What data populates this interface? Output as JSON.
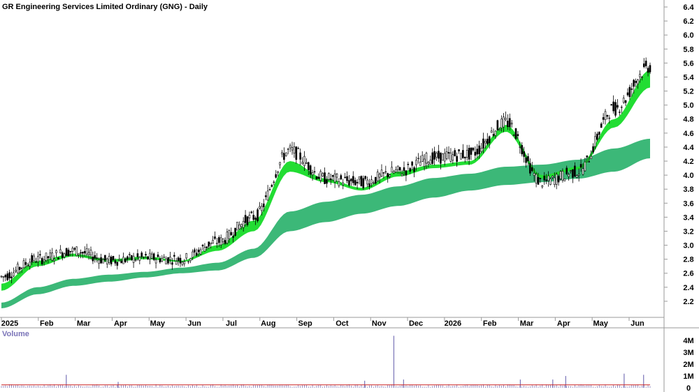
{
  "chart_data": {
    "type": "candlestick",
    "title": "GR Engineering Services Limited Ordinary (GNG) - Daily",
    "y_ticks": [
      "6.4",
      "6.2",
      "6.0",
      "5.8",
      "5.6",
      "5.4",
      "5.2",
      "5.0",
      "4.8",
      "4.6",
      "4.4",
      "4.2",
      "4.0",
      "3.8",
      "3.6",
      "3.4",
      "3.2",
      "3.0",
      "2.8",
      "2.6",
      "2.4",
      "2.2"
    ],
    "ylim": [
      2.0,
      6.45
    ],
    "x_ticks": [
      "2025",
      "Feb",
      "Mar",
      "Apr",
      "May",
      "Jun",
      "Jul",
      "Aug",
      "Sep",
      "Oct",
      "Nov",
      "Dec",
      "2026",
      "Feb",
      "Mar",
      "Apr",
      "May",
      "Jun"
    ],
    "price_series": [
      {
        "month": "2025",
        "close": 2.55
      },
      {
        "month": "Jan",
        "close": 2.8
      },
      {
        "month": "Feb",
        "close": 2.92
      },
      {
        "month": "Mar",
        "close": 2.78
      },
      {
        "month": "Apr",
        "close": 2.82
      },
      {
        "month": "May",
        "close": 2.8
      },
      {
        "month": "Jun",
        "close": 3.05
      },
      {
        "month": "Jul",
        "close": 3.4
      },
      {
        "month": "Aug",
        "close": 4.35
      },
      {
        "month": "Sep",
        "close": 3.95
      },
      {
        "month": "Oct",
        "close": 3.9
      },
      {
        "month": "Nov",
        "close": 4.05
      },
      {
        "month": "Dec",
        "close": 4.25
      },
      {
        "month": "2026",
        "close": 4.3
      },
      {
        "month": "Feb",
        "close": 4.75
      },
      {
        "month": "Mar",
        "close": 3.9
      },
      {
        "month": "Apr",
        "close": 4.05
      },
      {
        "month": "May",
        "close": 4.95
      },
      {
        "month": "Jun",
        "close": 5.55
      }
    ],
    "short_ma_band": {
      "name": "",
      "upper": [
        2.45,
        2.78,
        2.88,
        2.8,
        2.84,
        2.78,
        3.0,
        3.35,
        4.2,
        3.95,
        3.82,
        4.05,
        4.15,
        4.2,
        4.72,
        4.0,
        4.12,
        4.8,
        5.5
      ],
      "lower": [
        2.35,
        2.7,
        2.84,
        2.76,
        2.8,
        2.76,
        2.92,
        3.2,
        4.05,
        3.9,
        3.78,
        3.98,
        4.1,
        4.15,
        4.62,
        3.95,
        4.08,
        4.68,
        5.25
      ]
    },
    "long_ma_band": {
      "name": "",
      "upper": [
        2.18,
        2.4,
        2.52,
        2.58,
        2.62,
        2.68,
        2.75,
        2.95,
        3.48,
        3.62,
        3.72,
        3.84,
        3.96,
        4.02,
        4.12,
        4.15,
        4.22,
        4.38,
        4.52
      ],
      "lower": [
        2.1,
        2.3,
        2.42,
        2.48,
        2.54,
        2.6,
        2.64,
        2.82,
        3.2,
        3.33,
        3.45,
        3.56,
        3.68,
        3.78,
        3.86,
        3.9,
        3.95,
        4.05,
        4.24
      ]
    },
    "volume_panel": {
      "title": "Volume",
      "y_ticks": [
        "4M",
        "3M",
        "2M",
        "1M",
        "0"
      ],
      "ylim": [
        0,
        4600000
      ],
      "spikes": [
        {
          "month": "Feb",
          "value": 1100000
        },
        {
          "month": "Apr",
          "value": 500000
        },
        {
          "month": "Oct",
          "value": 600000
        },
        {
          "month": "Nov",
          "value": 4400000
        },
        {
          "month": "Nov",
          "value": 700000
        },
        {
          "month": "Mar",
          "value": 700000
        },
        {
          "month": "Apr",
          "value": 700000
        },
        {
          "month": "May",
          "value": 1000000
        },
        {
          "month": "Jun",
          "value": 1200000
        },
        {
          "month": "Jun",
          "value": 1100000
        }
      ],
      "baseline_volume": 250000
    }
  }
}
